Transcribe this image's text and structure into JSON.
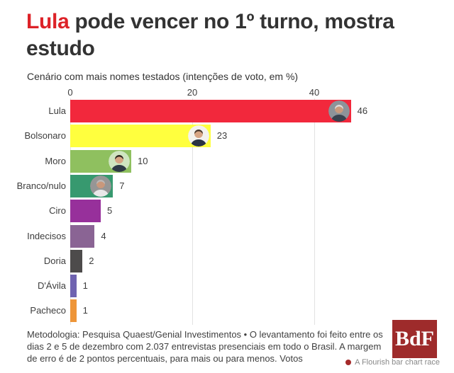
{
  "page": {
    "title_accent": "Lula",
    "title_rest": " pode vencer no 1º turno, mostra estudo",
    "subtitle": "Cenário com mais nomes testados (intenções de voto, em %)",
    "footer_methodology": "Metodologia: Pesquisa Quaest/Genial Investimentos • O levantamento foi feito entre os dias 2 e 5 de dezembro com 2.037 entrevistas presenciais em todo o Brasil. A margem de erro é de 2 pontos percentuais, para mais ou para menos. Votos",
    "logo_text": "BdF",
    "attribution": "A Flourish bar chart race"
  },
  "colors": {
    "title_accent": "#dd2228",
    "title_text": "#333333",
    "logo_bg": "#9e2b2b",
    "attribution_dot": "#a52a2a",
    "gridline": "#e2e2e2",
    "axis_text": "#3d3d3d"
  },
  "chart_data": {
    "type": "bar",
    "orientation": "horizontal",
    "title": "Cenário com mais nomes testados (intenções de voto, em %)",
    "categories": [
      "Lula",
      "Bolsonaro",
      "Moro",
      "Branco/nulo",
      "Ciro",
      "Indecisos",
      "Doria",
      "D'Ávila",
      "Pacheco"
    ],
    "values": [
      46,
      23,
      10,
      7,
      5,
      4,
      2,
      1,
      1
    ],
    "bar_colors": [
      "#f2283c",
      "#ffff3e",
      "#8fc05f",
      "#37996f",
      "#97309b",
      "#8a6494",
      "#4d4b4b",
      "#6f63b0",
      "#ee9538"
    ],
    "x_ticks": [
      0,
      20,
      40
    ],
    "xlim": [
      0,
      61
    ],
    "grid": true,
    "legend": "none",
    "xlabel": "",
    "ylabel": "",
    "avatars": [
      {
        "present": true,
        "bg": "#8d9399",
        "hair": "#dcdcdc",
        "skin": "#c99a7d",
        "shirt": "#39434f"
      },
      {
        "present": true,
        "bg": "#f3f2ee",
        "hair": "#4a3a2e",
        "skin": "#d7a584",
        "shirt": "#2b3444"
      },
      {
        "present": true,
        "bg": "#cfe5c0",
        "hair": "#2e2620",
        "skin": "#d7a584",
        "shirt": "#2f3a46"
      },
      {
        "present": true,
        "bg": "#969696",
        "hair": "#b9b9b9",
        "skin": "#c9987c",
        "shirt": "#e8e8e8"
      },
      {
        "present": false
      },
      {
        "present": false
      },
      {
        "present": false
      },
      {
        "present": false
      },
      {
        "present": false
      }
    ]
  }
}
